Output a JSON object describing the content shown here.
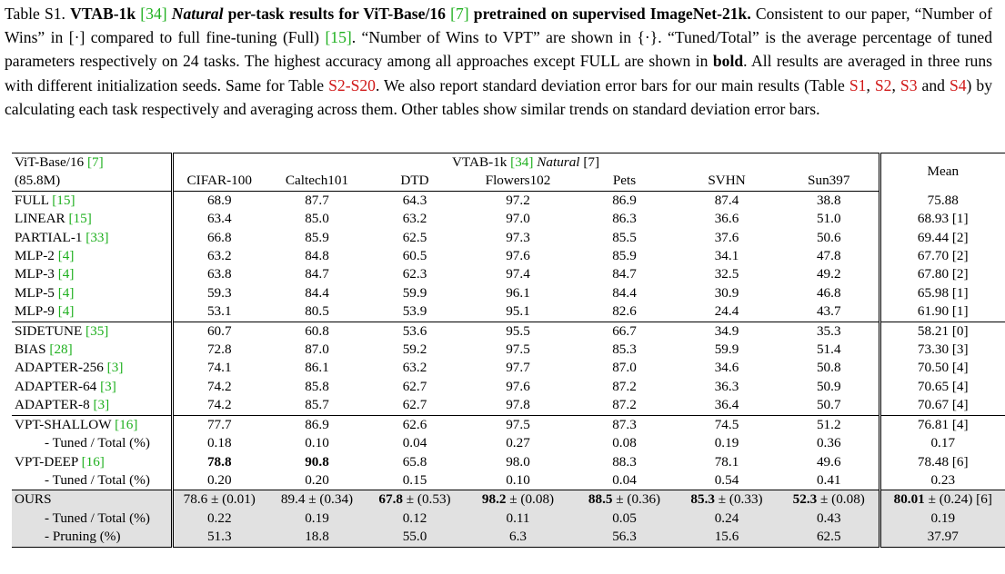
{
  "caption": {
    "table_label": "Table S1.",
    "title_bold_a": "VTAB-1k",
    "ref_vtab": "[34]",
    "title_italic": "Natural",
    "title_bold_b": "per-task results for ViT-Base/16",
    "ref_vit": "[7]",
    "title_bold_c": "pretrained on supervised ImageNet-21k.",
    "text_a": "Consistent to our paper, “Number of Wins” in [·] compared to full fine-tuning (Full)",
    "ref_full": "[15]",
    "text_b": ". “Number of Wins to VPT” are shown in {·}. “Tuned/Total” is the average percentage of tuned parameters respectively on 24 tasks. The highest accuracy among all approaches except FULL are shown in",
    "bold_word": "bold",
    "text_c": ". All results are averaged in three runs with different initialization seeds. Same for Table",
    "tref_range": "S2-S20",
    "text_d": ". We also report standard deviation error bars for our main results (Table",
    "tref_s1": "S1",
    "tref_s2": "S2",
    "tref_s3": "S3",
    "tref_s4": "S4",
    "sep_comma": ",",
    "sep_and": "and",
    "text_e": ") by calculating each task respectively and averaging across them. Other tables show similar trends on standard deviation error bars."
  },
  "table": {
    "header": {
      "backbone": "ViT-Base/16",
      "backbone_ref": "[7]",
      "params": "(85.8M)",
      "group_a": "VTAB-1k",
      "group_ref": "[34]",
      "group_natural": "Natural",
      "group_ref2": "[7]",
      "mean": "Mean",
      "tasks": [
        "CIFAR-100",
        "Caltech101",
        "DTD",
        "Flowers102",
        "Pets",
        "SVHN",
        "Sun397"
      ]
    },
    "rows": [
      {
        "name": "FULL",
        "ref": "[15]",
        "vals": [
          "68.9",
          "87.7",
          "64.3",
          "97.2",
          "86.9",
          "87.4",
          "38.8"
        ],
        "mean": "75.88"
      },
      {
        "name": "LINEAR",
        "ref": "[15]",
        "vals": [
          "63.4",
          "85.0",
          "63.2",
          "97.0",
          "86.3",
          "36.6",
          "51.0"
        ],
        "mean": "68.93 [1]"
      },
      {
        "name": "PARTIAL-1",
        "ref": "[33]",
        "vals": [
          "66.8",
          "85.9",
          "62.5",
          "97.3",
          "85.5",
          "37.6",
          "50.6"
        ],
        "mean": "69.44 [2]"
      },
      {
        "name": "MLP-2",
        "ref": "[4]",
        "vals": [
          "63.2",
          "84.8",
          "60.5",
          "97.6",
          "85.9",
          "34.1",
          "47.8"
        ],
        "mean": "67.70 [2]"
      },
      {
        "name": "MLP-3",
        "ref": "[4]",
        "vals": [
          "63.8",
          "84.7",
          "62.3",
          "97.4",
          "84.7",
          "32.5",
          "49.2"
        ],
        "mean": "67.80 [2]"
      },
      {
        "name": "MLP-5",
        "ref": "[4]",
        "vals": [
          "59.3",
          "84.4",
          "59.9",
          "96.1",
          "84.4",
          "30.9",
          "46.8"
        ],
        "mean": "65.98 [1]"
      },
      {
        "name": "MLP-9",
        "ref": "[4]",
        "vals": [
          "53.1",
          "80.5",
          "53.9",
          "95.1",
          "82.6",
          "24.4",
          "43.7"
        ],
        "mean": "61.90 [1]"
      },
      {
        "name": "SIDETUNE",
        "ref": "[35]",
        "vals": [
          "60.7",
          "60.8",
          "53.6",
          "95.5",
          "66.7",
          "34.9",
          "35.3"
        ],
        "mean": "58.21 [0]"
      },
      {
        "name": "BIAS",
        "ref": "[28]",
        "vals": [
          "72.8",
          "87.0",
          "59.2",
          "97.5",
          "85.3",
          "59.9",
          "51.4"
        ],
        "mean": "73.30 [3]"
      },
      {
        "name": "ADAPTER-256",
        "ref": "[3]",
        "vals": [
          "74.1",
          "86.1",
          "63.2",
          "97.7",
          "87.0",
          "34.6",
          "50.8"
        ],
        "mean": "70.50 [4]"
      },
      {
        "name": "ADAPTER-64",
        "ref": "[3]",
        "vals": [
          "74.2",
          "85.8",
          "62.7",
          "97.6",
          "87.2",
          "36.3",
          "50.9"
        ],
        "mean": "70.65 [4]"
      },
      {
        "name": "ADAPTER-8",
        "ref": "[3]",
        "vals": [
          "74.2",
          "85.7",
          "62.7",
          "97.8",
          "87.2",
          "36.4",
          "50.7"
        ],
        "mean": "70.67 [4]"
      },
      {
        "name": "VPT-SHALLOW",
        "ref": "[16]",
        "vals": [
          "77.7",
          "86.9",
          "62.6",
          "97.5",
          "87.3",
          "74.5",
          "51.2"
        ],
        "mean": "76.81 [4]"
      },
      {
        "name": "- Tuned / Total (%)",
        "ref": "",
        "vals": [
          "0.18",
          "0.10",
          "0.04",
          "0.27",
          "0.08",
          "0.19",
          "0.36"
        ],
        "mean": "0.17"
      },
      {
        "name": "VPT-DEEP",
        "ref": "[16]",
        "vals": [
          "78.8",
          "90.8",
          "65.8",
          "98.0",
          "88.3",
          "78.1",
          "49.6"
        ],
        "mean": "78.48 [6]"
      },
      {
        "name": "- Tuned / Total (%)",
        "ref": "",
        "vals": [
          "0.20",
          "0.20",
          "0.15",
          "0.10",
          "0.04",
          "0.54",
          "0.41"
        ],
        "mean": "0.23"
      },
      {
        "name": "OURS",
        "ref": "",
        "vals": [
          "78.6 ± (0.01)",
          "89.4 ± (0.34)",
          "67.8 ± (0.53)",
          "98.2 ± (0.08)",
          "88.5 ± (0.36)",
          "85.3 ± (0.33)",
          "52.3 ± (0.08)"
        ],
        "mean": "80.01 ± (0.24) [6]"
      },
      {
        "name": "- Tuned / Total (%)",
        "ref": "",
        "vals": [
          "0.22",
          "0.19",
          "0.12",
          "0.11",
          "0.05",
          "0.24",
          "0.43"
        ],
        "mean": "0.19"
      },
      {
        "name": "- Pruning (%)",
        "ref": "",
        "vals": [
          "51.3",
          "18.8",
          "55.0",
          "6.3",
          "56.3",
          "15.6",
          "62.5"
        ],
        "mean": "37.97"
      }
    ]
  }
}
